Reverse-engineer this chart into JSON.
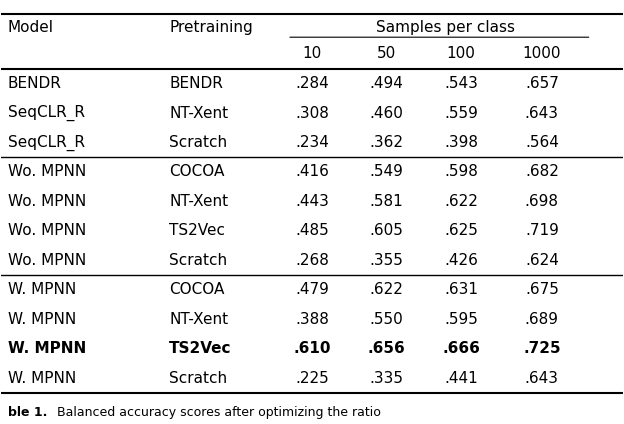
{
  "title": "",
  "col_headers": [
    "Model",
    "Pretraining",
    "10",
    "50",
    "100",
    "1000"
  ],
  "samples_per_class_label": "Samples per class",
  "rows": [
    {
      "model": "BENDR",
      "pretraining": "BENDR",
      "v10": ".284",
      "v50": ".494",
      "v100": ".543",
      "v1000": ".657",
      "bold": false,
      "group": 1
    },
    {
      "model": "SeqCLR_R",
      "pretraining": "NT-Xent",
      "v10": ".308",
      "v50": ".460",
      "v100": ".559",
      "v1000": ".643",
      "bold": false,
      "group": 1
    },
    {
      "model": "SeqCLR_R",
      "pretraining": "Scratch",
      "v10": ".234",
      "v50": ".362",
      "v100": ".398",
      "v1000": ".564",
      "bold": false,
      "group": 1
    },
    {
      "model": "Wo. MPNN",
      "pretraining": "COCOA",
      "v10": ".416",
      "v50": ".549",
      "v100": ".598",
      "v1000": ".682",
      "bold": false,
      "group": 2
    },
    {
      "model": "Wo. MPNN",
      "pretraining": "NT-Xent",
      "v10": ".443",
      "v50": ".581",
      "v100": ".622",
      "v1000": ".698",
      "bold": false,
      "group": 2
    },
    {
      "model": "Wo. MPNN",
      "pretraining": "TS2Vec",
      "v10": ".485",
      "v50": ".605",
      "v100": ".625",
      "v1000": ".719",
      "bold": false,
      "group": 2
    },
    {
      "model": "Wo. MPNN",
      "pretraining": "Scratch",
      "v10": ".268",
      "v50": ".355",
      "v100": ".426",
      "v1000": ".624",
      "bold": false,
      "group": 2
    },
    {
      "model": "W. MPNN",
      "pretraining": "COCOA",
      "v10": ".479",
      "v50": ".622",
      "v100": ".631",
      "v1000": ".675",
      "bold": false,
      "group": 3
    },
    {
      "model": "W. MPNN",
      "pretraining": "NT-Xent",
      "v10": ".388",
      "v50": ".550",
      "v100": ".595",
      "v1000": ".689",
      "bold": false,
      "group": 3
    },
    {
      "model": "W. MPNN",
      "pretraining": "TS2Vec",
      "v10": ".610",
      "v50": ".656",
      "v100": ".666",
      "v1000": ".725",
      "bold": true,
      "group": 3
    },
    {
      "model": "W. MPNN",
      "pretraining": "Scratch",
      "v10": ".225",
      "v50": ".335",
      "v100": ".441",
      "v1000": ".643",
      "bold": false,
      "group": 3
    }
  ],
  "bg_color": "white",
  "text_color": "black",
  "font_size": 11,
  "header_font_size": 11
}
